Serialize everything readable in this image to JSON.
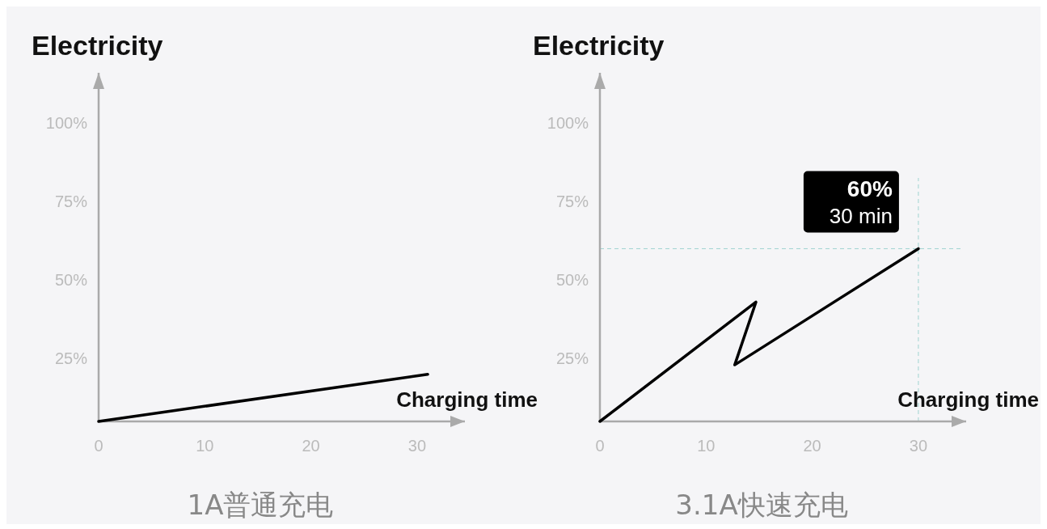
{
  "chart_data": [
    {
      "type": "line",
      "ylabel": "Electricity",
      "xlabel": "Charging time",
      "xlim": [
        0,
        34.5
      ],
      "ylim": [
        5,
        116
      ],
      "xticks": [
        0,
        10,
        20,
        30
      ],
      "yticks": [
        {
          "value": 25,
          "label": "25%"
        },
        {
          "value": 50,
          "label": "50%"
        },
        {
          "value": 75,
          "label": "75%"
        },
        {
          "value": 100,
          "label": "100%"
        }
      ],
      "grid": false,
      "marker": "none",
      "series": [
        {
          "color": "#000000",
          "x": [
            0,
            31
          ],
          "values": [
            5,
            20
          ]
        }
      ],
      "annotations": [
        "1A普通充电"
      ]
    },
    {
      "type": "line",
      "ylabel": "Electricity",
      "xlabel": "Charging time",
      "xlim": [
        0,
        34.5
      ],
      "ylim": [
        5,
        116
      ],
      "xticks": [
        0,
        10,
        20,
        30
      ],
      "yticks": [
        {
          "value": 25,
          "label": "25%"
        },
        {
          "value": 50,
          "label": "50%"
        },
        {
          "value": 75,
          "label": "75%"
        },
        {
          "value": 100,
          "label": "100%"
        }
      ],
      "grid": false,
      "marker": "none",
      "series": [
        {
          "color": "#000000",
          "x": [
            0,
            14.7,
            12.7,
            30
          ],
          "values": [
            5,
            43,
            23,
            60
          ]
        }
      ],
      "ref_lines": [
        {
          "axis": "x",
          "value": 30,
          "color": "#9fd3d0",
          "line_style": "dashed"
        },
        {
          "axis": "y",
          "value": 60,
          "color": "#9fd3d0",
          "line_style": "dashed"
        }
      ],
      "annotations": [
        {
          "text": "60%\n30 min",
          "x": 30,
          "y": 60
        },
        "3.1A快速充电"
      ]
    }
  ]
}
